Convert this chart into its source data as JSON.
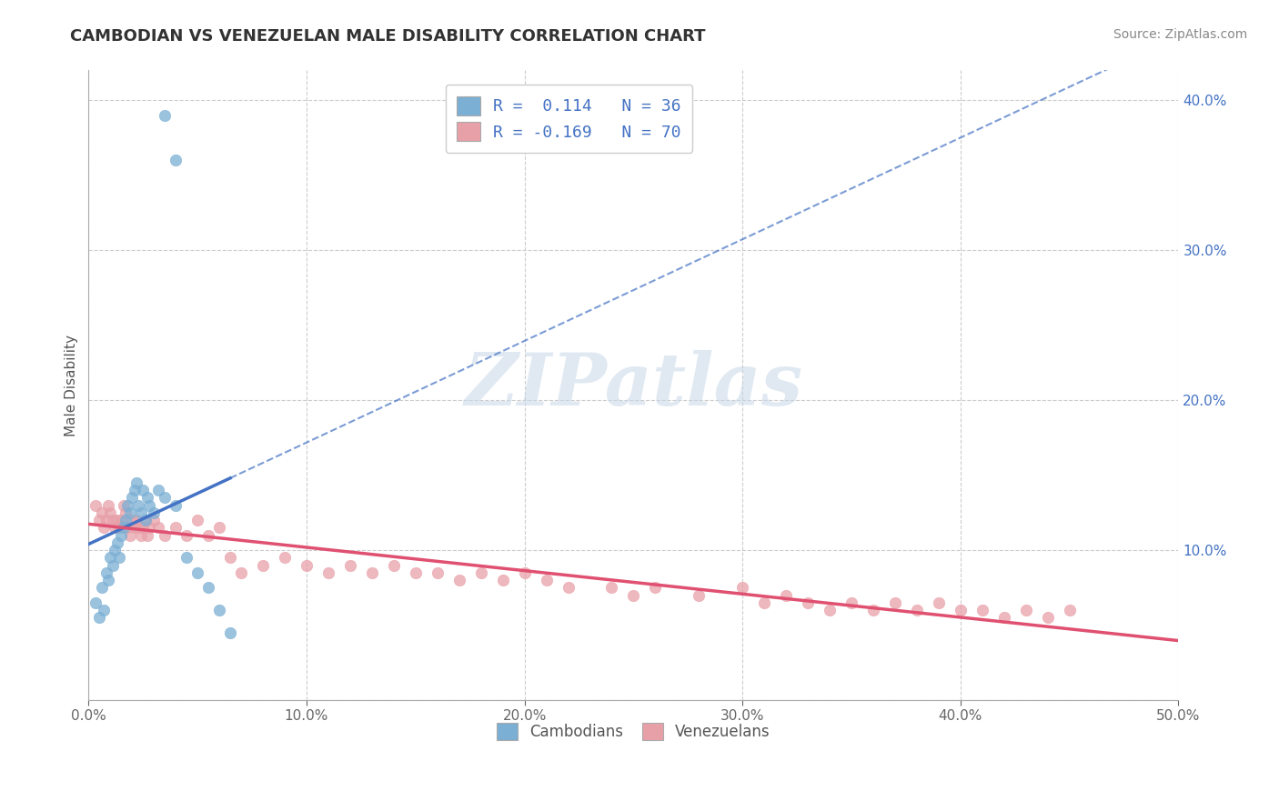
{
  "title": "CAMBODIAN VS VENEZUELAN MALE DISABILITY CORRELATION CHART",
  "source": "Source: ZipAtlas.com",
  "ylabel": "Male Disability",
  "xlim": [
    0.0,
    0.5
  ],
  "ylim": [
    0.0,
    0.42
  ],
  "x_ticks": [
    0.0,
    0.1,
    0.2,
    0.3,
    0.4,
    0.5
  ],
  "x_tick_labels": [
    "0.0%",
    "10.0%",
    "20.0%",
    "30.0%",
    "40.0%",
    "50.0%"
  ],
  "y_ticks": [
    0.0,
    0.1,
    0.2,
    0.3,
    0.4
  ],
  "y_tick_labels": [
    "",
    "10.0%",
    "20.0%",
    "30.0%",
    "40.0%"
  ],
  "legend_line1": "R =  0.114   N = 36",
  "legend_line2": "R = -0.169   N = 70",
  "color_cambodian": "#7bafd4",
  "color_venezuelan": "#e8a0a8",
  "color_trendline_cambodian": "#4472c4",
  "color_trendline_venezuelan": "#e05070",
  "watermark_text": "ZIPatlas",
  "cambodian_x": [
    0.003,
    0.005,
    0.006,
    0.007,
    0.008,
    0.009,
    0.01,
    0.011,
    0.012,
    0.013,
    0.014,
    0.015,
    0.016,
    0.017,
    0.018,
    0.019,
    0.02,
    0.021,
    0.022,
    0.023,
    0.024,
    0.025,
    0.026,
    0.027,
    0.028,
    0.03,
    0.032,
    0.035,
    0.04,
    0.045,
    0.05,
    0.055,
    0.06,
    0.065,
    0.04,
    0.035
  ],
  "cambodian_y": [
    0.065,
    0.055,
    0.075,
    0.06,
    0.085,
    0.08,
    0.095,
    0.09,
    0.1,
    0.105,
    0.095,
    0.11,
    0.115,
    0.12,
    0.13,
    0.125,
    0.135,
    0.14,
    0.145,
    0.13,
    0.125,
    0.14,
    0.12,
    0.135,
    0.13,
    0.125,
    0.14,
    0.135,
    0.13,
    0.095,
    0.085,
    0.075,
    0.06,
    0.045,
    0.36,
    0.39
  ],
  "venezuelan_x": [
    0.003,
    0.005,
    0.006,
    0.007,
    0.008,
    0.009,
    0.01,
    0.011,
    0.012,
    0.013,
    0.014,
    0.015,
    0.016,
    0.017,
    0.018,
    0.019,
    0.02,
    0.021,
    0.022,
    0.023,
    0.024,
    0.025,
    0.026,
    0.027,
    0.028,
    0.03,
    0.032,
    0.035,
    0.04,
    0.045,
    0.05,
    0.055,
    0.06,
    0.065,
    0.07,
    0.08,
    0.09,
    0.1,
    0.11,
    0.12,
    0.13,
    0.14,
    0.15,
    0.16,
    0.17,
    0.18,
    0.19,
    0.2,
    0.21,
    0.22,
    0.24,
    0.25,
    0.26,
    0.28,
    0.3,
    0.31,
    0.32,
    0.33,
    0.34,
    0.35,
    0.36,
    0.37,
    0.38,
    0.39,
    0.4,
    0.41,
    0.42,
    0.43,
    0.44,
    0.45
  ],
  "venezuelan_y": [
    0.13,
    0.12,
    0.125,
    0.115,
    0.12,
    0.13,
    0.125,
    0.12,
    0.115,
    0.12,
    0.115,
    0.12,
    0.13,
    0.125,
    0.115,
    0.11,
    0.12,
    0.115,
    0.12,
    0.115,
    0.11,
    0.115,
    0.12,
    0.11,
    0.115,
    0.12,
    0.115,
    0.11,
    0.115,
    0.11,
    0.12,
    0.11,
    0.115,
    0.095,
    0.085,
    0.09,
    0.095,
    0.09,
    0.085,
    0.09,
    0.085,
    0.09,
    0.085,
    0.085,
    0.08,
    0.085,
    0.08,
    0.085,
    0.08,
    0.075,
    0.075,
    0.07,
    0.075,
    0.07,
    0.075,
    0.065,
    0.07,
    0.065,
    0.06,
    0.065,
    0.06,
    0.065,
    0.06,
    0.065,
    0.06,
    0.06,
    0.055,
    0.06,
    0.055,
    0.06
  ]
}
